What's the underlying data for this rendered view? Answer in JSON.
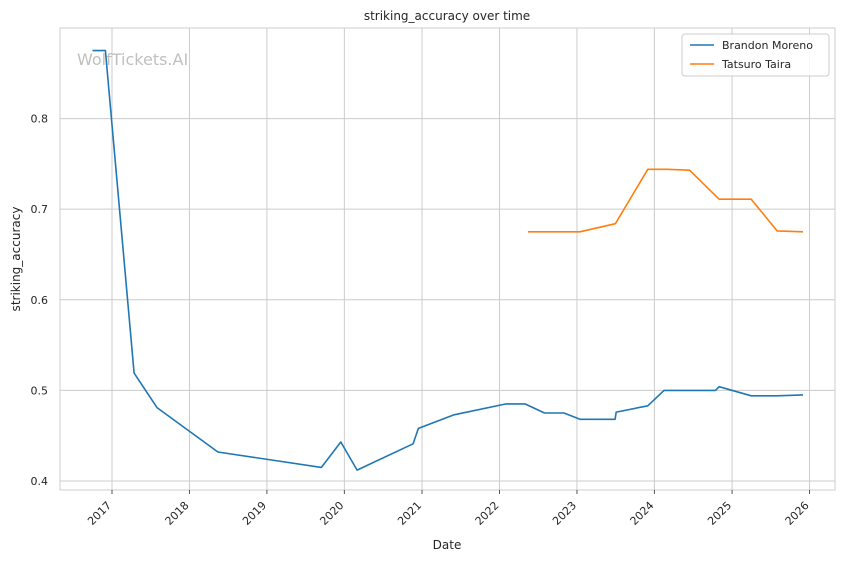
{
  "chart_data": {
    "type": "line",
    "title": "striking_accuracy over time",
    "xlabel": "Date",
    "ylabel": "striking_accuracy",
    "watermark": "WolfTickets.AI",
    "x_ticks": [
      "2017",
      "2018",
      "2019",
      "2020",
      "2021",
      "2022",
      "2023",
      "2024",
      "2025",
      "2026"
    ],
    "y_ticks": [
      "0.4",
      "0.5",
      "0.6",
      "0.7",
      "0.8"
    ],
    "xlim": [
      "2016-05-01",
      "2026-05-01"
    ],
    "ylim": [
      0.39,
      0.9
    ],
    "grid": true,
    "legend_position": "top-right",
    "series": [
      {
        "name": "Brandon Moreno",
        "color": "#1f77b4",
        "points": [
          [
            "2016-10-01",
            0.875
          ],
          [
            "2016-12-01",
            0.875
          ],
          [
            "2017-04-15",
            0.519
          ],
          [
            "2017-08-01",
            0.481
          ],
          [
            "2018-05-15",
            0.432
          ],
          [
            "2019-09-15",
            0.415
          ],
          [
            "2019-12-15",
            0.443
          ],
          [
            "2020-03-01",
            0.412
          ],
          [
            "2020-11-20",
            0.441
          ],
          [
            "2020-12-15",
            0.458
          ],
          [
            "2021-06-01",
            0.473
          ],
          [
            "2022-02-01",
            0.485
          ],
          [
            "2022-05-01",
            0.485
          ],
          [
            "2022-08-01",
            0.475
          ],
          [
            "2022-11-01",
            0.475
          ],
          [
            "2023-01-15",
            0.468
          ],
          [
            "2023-06-30",
            0.468
          ],
          [
            "2023-07-05",
            0.476
          ],
          [
            "2023-12-01",
            0.483
          ],
          [
            "2024-02-15",
            0.5
          ],
          [
            "2024-10-15",
            0.5
          ],
          [
            "2024-11-01",
            0.504
          ],
          [
            "2025-04-01",
            0.494
          ],
          [
            "2025-08-01",
            0.494
          ],
          [
            "2025-12-01",
            0.495
          ]
        ]
      },
      {
        "name": "Tatsuro Taira",
        "color": "#ff7f0e",
        "points": [
          [
            "2022-05-15",
            0.675
          ],
          [
            "2023-01-15",
            0.675
          ],
          [
            "2023-07-01",
            0.684
          ],
          [
            "2023-12-01",
            0.744
          ],
          [
            "2024-03-01",
            0.744
          ],
          [
            "2024-06-15",
            0.743
          ],
          [
            "2024-11-01",
            0.711
          ],
          [
            "2025-04-01",
            0.711
          ],
          [
            "2025-08-01",
            0.676
          ],
          [
            "2025-12-01",
            0.675
          ]
        ]
      }
    ]
  }
}
